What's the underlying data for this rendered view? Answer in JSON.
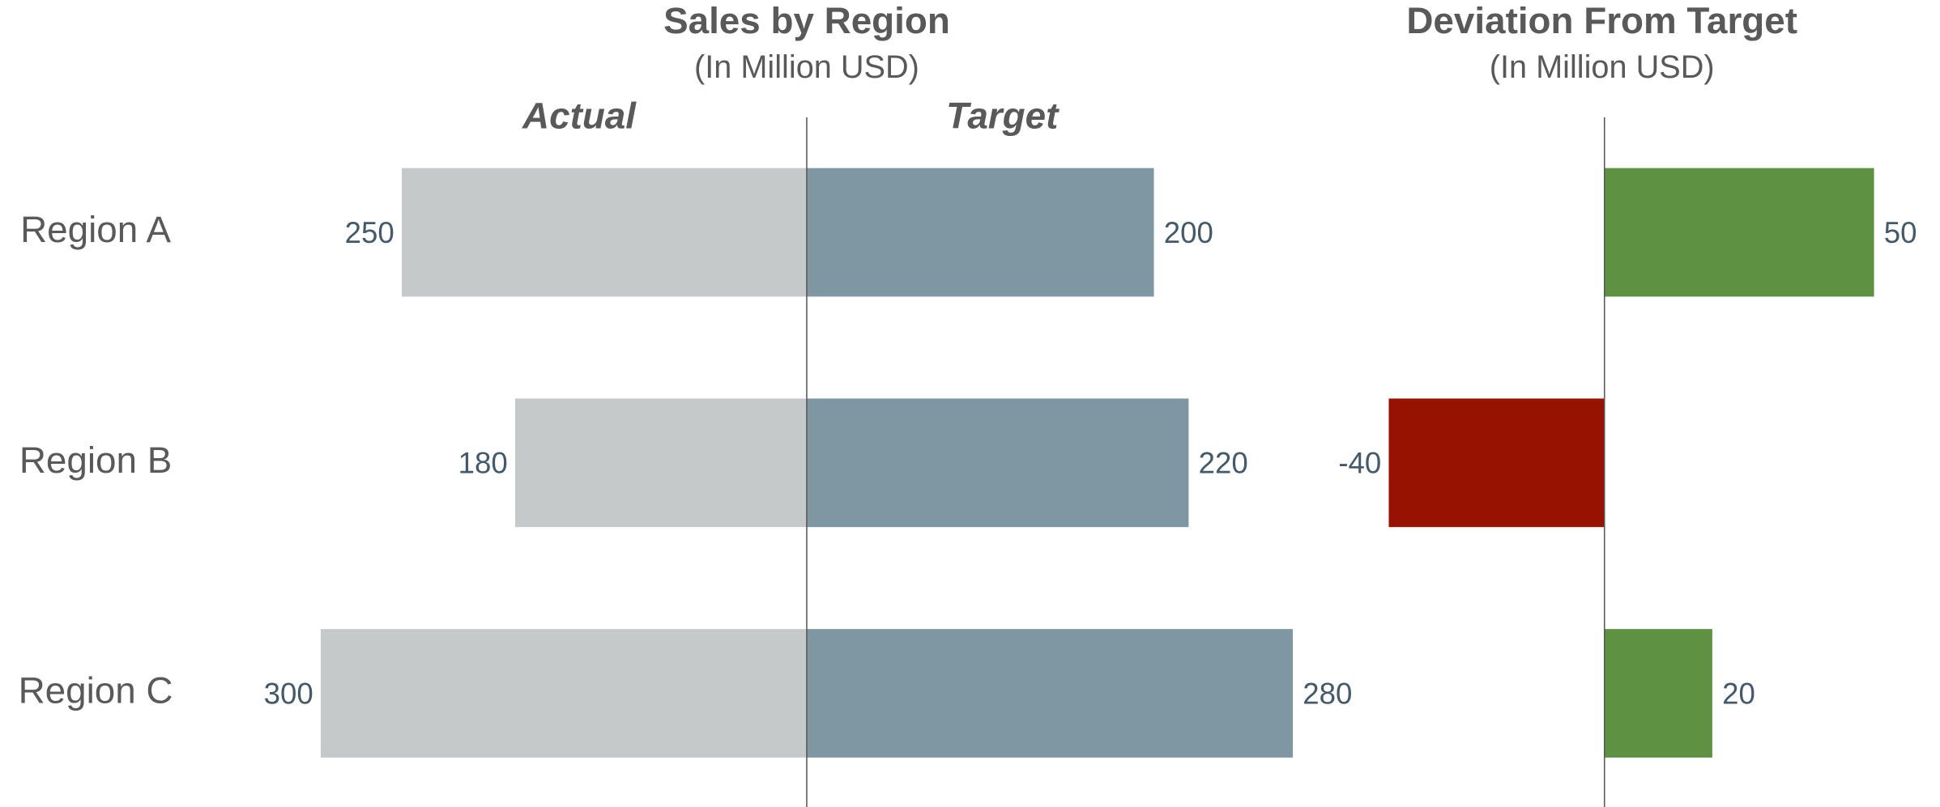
{
  "chart_data": [
    {
      "type": "butterfly",
      "title": "Sales by Region",
      "subtitle": "(In Million USD)",
      "categories": [
        "Region A",
        "Region B",
        "Region C"
      ],
      "series": [
        {
          "name": "Actual",
          "color": "#c5c9ca",
          "values": [
            250,
            180,
            300
          ]
        },
        {
          "name": "Target",
          "color": "#7f96a3",
          "values": [
            200,
            220,
            280
          ]
        }
      ]
    },
    {
      "type": "deviation",
      "title": "Deviation From Target",
      "subtitle": "(In Million USD)",
      "values": [
        50,
        -40,
        20
      ],
      "colors": [
        "#5e9142",
        "#971200",
        "#5e9142"
      ]
    }
  ]
}
